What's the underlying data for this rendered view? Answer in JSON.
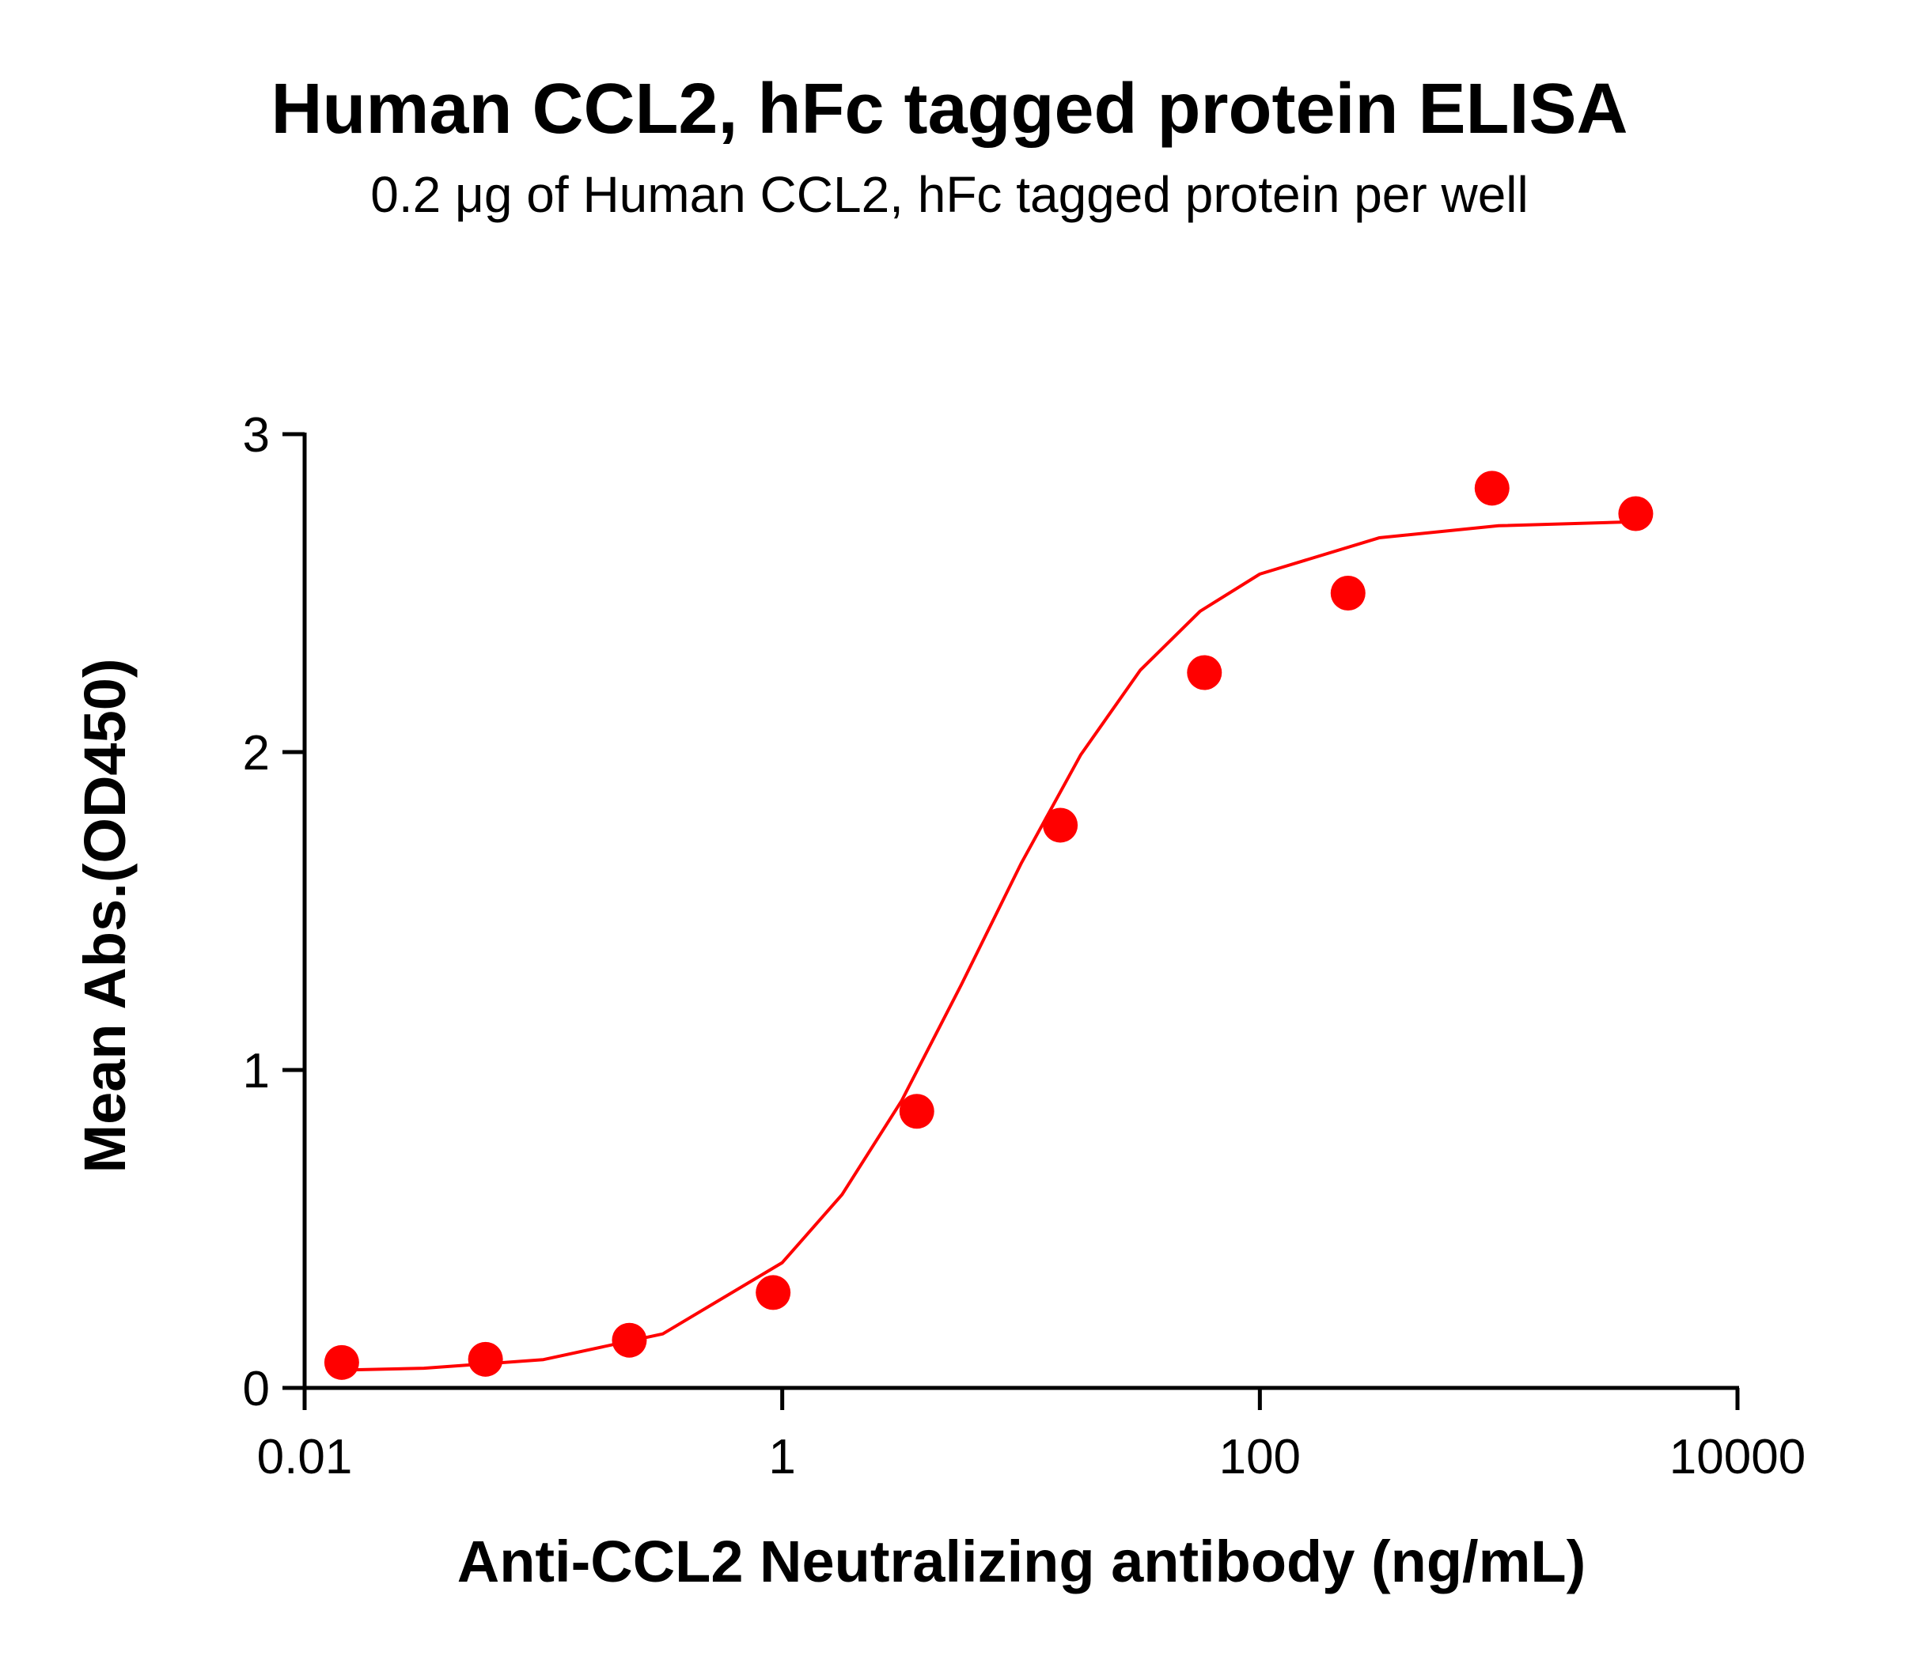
{
  "chart_data": {
    "type": "scatter",
    "title": "Human CCL2, hFc tagged protein ELISA",
    "subtitle": "0.2 μg of Human CCL2, hFc tagged protein per well",
    "xlabel": "Anti-CCL2 Neutralizing antibody (ng/mL)",
    "ylabel": "Mean Abs.(OD450)",
    "xscale": "log",
    "xlim": [
      0.01,
      10000
    ],
    "xticks": [
      0.01,
      1,
      100,
      10000
    ],
    "ylim": [
      0,
      3
    ],
    "yticks": [
      0,
      1,
      2,
      3
    ],
    "series": [
      {
        "style": "markers",
        "color": "#ff0000",
        "x": [
          0.0143,
          0.0572,
          0.229,
          0.916,
          3.66,
          14.6,
          58.6,
          234,
          938,
          3750
        ],
        "values": [
          0.08,
          0.09,
          0.15,
          0.3,
          0.87,
          1.77,
          2.25,
          2.5,
          2.83,
          2.75
        ]
      },
      {
        "style": "line",
        "color": "#ff0000",
        "x": [
          0.0141,
          0.0316,
          0.1,
          0.316,
          1,
          1.78,
          3.16,
          5.62,
          10,
          17.8,
          31.6,
          56.2,
          100,
          316,
          1000,
          3981
        ],
        "values": [
          0.056,
          0.062,
          0.089,
          0.17,
          0.394,
          0.608,
          0.903,
          1.268,
          1.649,
          1.992,
          2.258,
          2.443,
          2.56,
          2.674,
          2.712,
          2.725
        ]
      }
    ]
  }
}
